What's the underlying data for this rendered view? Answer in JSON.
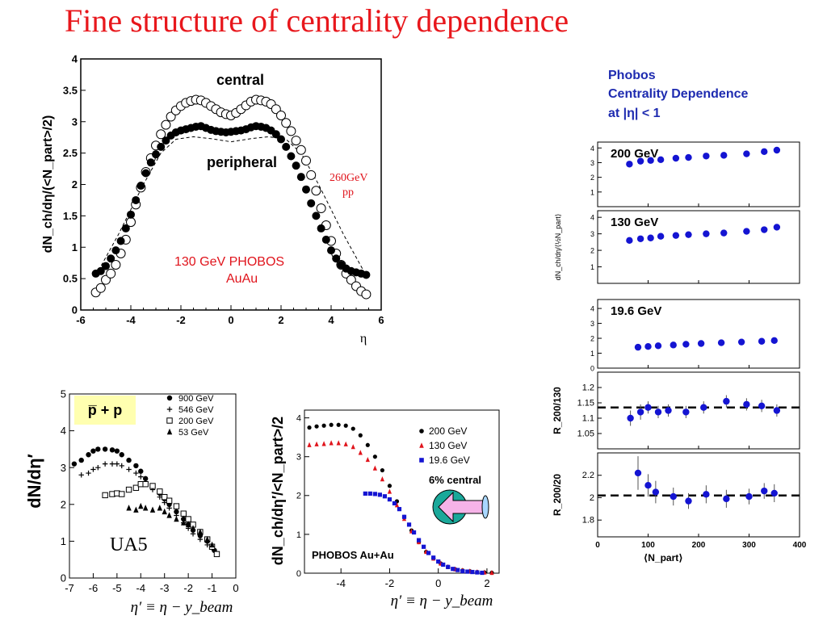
{
  "title": "Fine structure of centrality dependence",
  "colors": {
    "title": "#e8171c",
    "blue": "#1414d2",
    "red": "#e0141c",
    "navy": "#1e2bb0",
    "teal": "#1aa89a",
    "pink": "#f6b3e8",
    "yellow": "#ffffb0"
  },
  "chart_data": [
    {
      "type": "scatter",
      "ylabel": "dN_ch/dη/(<N_part>/2)",
      "xlabel": "η",
      "xlim": [
        -6,
        6
      ],
      "ylim": [
        0,
        4
      ],
      "xticks": [
        "-6",
        "-4",
        "-2",
        "0",
        "2",
        "4",
        "6"
      ],
      "yticks": [
        "0",
        "0.5",
        "1",
        "1.5",
        "2",
        "2.5",
        "3",
        "3.5",
        "4"
      ],
      "annotations": {
        "central": "central",
        "peripheral": "peripheral",
        "pp_line1": "260GeV",
        "pp_line2": "pp",
        "sys_line1": "130 GeV  PHOBOS",
        "sys_line2": "AuAu"
      },
      "series": [
        {
          "name": "central",
          "marker": "open-circle",
          "x": [
            -5.4,
            -5.2,
            -5.0,
            -4.8,
            -4.6,
            -4.4,
            -4.2,
            -4.0,
            -3.8,
            -3.6,
            -3.4,
            -3.2,
            -3.0,
            -2.8,
            -2.6,
            -2.4,
            -2.2,
            -2.0,
            -1.8,
            -1.6,
            -1.4,
            -1.2,
            -1.0,
            -0.8,
            -0.6,
            -0.4,
            -0.2,
            0.0,
            0.2,
            0.4,
            0.6,
            0.8,
            1.0,
            1.2,
            1.4,
            1.6,
            1.8,
            2.0,
            2.2,
            2.4,
            2.6,
            2.8,
            3.0,
            3.2,
            3.4,
            3.6,
            3.8,
            4.0,
            4.2,
            4.4,
            4.6,
            4.8,
            5.0,
            5.2,
            5.4
          ],
          "y": [
            0.28,
            0.35,
            0.48,
            0.58,
            0.72,
            0.9,
            1.12,
            1.4,
            1.68,
            1.95,
            2.2,
            2.42,
            2.62,
            2.8,
            2.95,
            3.08,
            3.18,
            3.25,
            3.3,
            3.33,
            3.35,
            3.34,
            3.3,
            3.25,
            3.2,
            3.15,
            3.12,
            3.1,
            3.14,
            3.2,
            3.26,
            3.32,
            3.35,
            3.34,
            3.32,
            3.28,
            3.2,
            3.1,
            2.98,
            2.85,
            2.7,
            2.55,
            2.38,
            2.15,
            1.9,
            1.62,
            1.35,
            1.1,
            0.9,
            0.72,
            0.58,
            0.48,
            0.38,
            0.3,
            0.25
          ]
        },
        {
          "name": "peripheral",
          "marker": "filled-circle",
          "x": [
            -5.4,
            -5.2,
            -5.0,
            -4.8,
            -4.6,
            -4.4,
            -4.2,
            -4.0,
            -3.8,
            -3.6,
            -3.4,
            -3.2,
            -3.0,
            -2.8,
            -2.6,
            -2.4,
            -2.2,
            -2.0,
            -1.8,
            -1.6,
            -1.4,
            -1.2,
            -1.0,
            -0.8,
            -0.6,
            -0.4,
            -0.2,
            0.0,
            0.2,
            0.4,
            0.6,
            0.8,
            1.0,
            1.2,
            1.4,
            1.6,
            1.8,
            2.0,
            2.2,
            2.4,
            2.6,
            2.8,
            3.0,
            3.2,
            3.4,
            3.6,
            3.8,
            4.0,
            4.2,
            4.4,
            4.6,
            4.8,
            5.0,
            5.2,
            5.4
          ],
          "y": [
            0.58,
            0.62,
            0.7,
            0.82,
            0.95,
            1.1,
            1.3,
            1.52,
            1.75,
            1.98,
            2.18,
            2.35,
            2.48,
            2.6,
            2.7,
            2.78,
            2.83,
            2.86,
            2.88,
            2.9,
            2.92,
            2.93,
            2.9,
            2.87,
            2.85,
            2.84,
            2.83,
            2.84,
            2.85,
            2.86,
            2.88,
            2.91,
            2.93,
            2.92,
            2.9,
            2.86,
            2.8,
            2.72,
            2.6,
            2.45,
            2.3,
            2.12,
            1.92,
            1.7,
            1.5,
            1.3,
            1.12,
            0.95,
            0.82,
            0.72,
            0.66,
            0.62,
            0.6,
            0.58,
            0.56
          ]
        },
        {
          "name": "260GeV pp",
          "marker": "dashed-line",
          "x": [
            -5.4,
            -4.5,
            -3.5,
            -2.8,
            -2.2,
            -1.5,
            -0.8,
            0.0,
            0.8,
            1.5,
            2.2,
            2.8,
            3.5,
            4.5,
            5.4
          ],
          "y": [
            0.55,
            1.2,
            2.0,
            2.5,
            2.72,
            2.76,
            2.73,
            2.68,
            2.73,
            2.76,
            2.72,
            2.5,
            2.0,
            1.2,
            0.55
          ]
        }
      ]
    },
    {
      "type": "scatter",
      "ylabel": "dN/dη′",
      "xlabel": "η′ ≡ η − y_beam",
      "xlim": [
        -7,
        0
      ],
      "ylim": [
        0,
        5
      ],
      "xticks": [
        "-7",
        "-6",
        "-5",
        "-4",
        "-3",
        "-2",
        "-1",
        "0"
      ],
      "yticks": [
        "0",
        "1",
        "2",
        "3",
        "4",
        "5"
      ],
      "annotations": {
        "label": "UA5",
        "box": "p̅ + p"
      },
      "series": [
        {
          "name": "900 GeV",
          "marker": "filled-circle",
          "x": [
            -6.8,
            -6.5,
            -6.2,
            -6.0,
            -5.8,
            -5.5,
            -5.2,
            -5.0,
            -4.8,
            -4.5,
            -4.2,
            -4.0,
            -3.8,
            -3.5,
            -3.2,
            -3.0,
            -2.8,
            -2.5,
            -2.2,
            -2.0,
            -1.8,
            -1.5,
            -1.2,
            -0.9
          ],
          "y": [
            3.1,
            3.2,
            3.35,
            3.45,
            3.5,
            3.5,
            3.48,
            3.45,
            3.35,
            3.2,
            3.05,
            2.9,
            2.7,
            2.5,
            2.3,
            2.15,
            2.0,
            1.8,
            1.6,
            1.45,
            1.3,
            1.15,
            1.0,
            0.75
          ]
        },
        {
          "name": "546 GeV",
          "marker": "plus",
          "x": [
            -6.5,
            -6.2,
            -6.0,
            -5.8,
            -5.5,
            -5.2,
            -5.0,
            -4.8,
            -4.5,
            -4.2,
            -4.0,
            -3.8,
            -3.5,
            -3.2,
            -3.0,
            -2.8,
            -2.5,
            -2.2,
            -2.0,
            -1.8,
            -1.5,
            -1.2,
            -1.0
          ],
          "y": [
            2.8,
            2.85,
            2.95,
            3.0,
            3.1,
            3.1,
            3.1,
            3.05,
            2.95,
            2.85,
            2.75,
            2.6,
            2.4,
            2.2,
            2.05,
            1.9,
            1.7,
            1.5,
            1.35,
            1.2,
            1.05,
            0.9,
            0.8
          ]
        },
        {
          "name": "200 GeV",
          "marker": "open-square",
          "x": [
            -5.5,
            -5.2,
            -5.0,
            -4.8,
            -4.5,
            -4.2,
            -4.0,
            -3.8,
            -3.5,
            -3.2,
            -3.0,
            -2.8,
            -2.5,
            -2.2,
            -2.0,
            -1.8,
            -1.5,
            -1.2,
            -1.0,
            -0.8
          ],
          "y": [
            2.25,
            2.28,
            2.3,
            2.28,
            2.4,
            2.45,
            2.55,
            2.55,
            2.5,
            2.35,
            2.2,
            2.1,
            1.95,
            1.75,
            1.6,
            1.45,
            1.25,
            1.05,
            0.85,
            0.65
          ]
        },
        {
          "name": "53 GeV",
          "marker": "filled-triangle",
          "x": [
            -4.5,
            -4.2,
            -4.0,
            -3.8,
            -3.5,
            -3.2,
            -3.0,
            -2.8,
            -2.5,
            -2.2,
            -2.0,
            -1.8,
            -1.5,
            -1.2,
            -1.0
          ],
          "y": [
            1.9,
            1.85,
            1.95,
            1.9,
            1.85,
            1.9,
            1.8,
            1.7,
            1.6,
            1.5,
            1.45,
            1.35,
            1.25,
            1.05,
            0.9
          ]
        }
      ]
    },
    {
      "type": "scatter",
      "ylabel": "dN_ch/dη′/<N_part>/2",
      "xlabel": "η′ ≡ η − y_beam",
      "xlim": [
        -5.5,
        2.5
      ],
      "ylim": [
        0,
        4.2
      ],
      "xticks": [
        "-4",
        "-2",
        "0",
        "2"
      ],
      "yticks": [
        "0",
        "1",
        "2",
        "3",
        "4"
      ],
      "annotations": {
        "label": "PHOBOS Au+Au",
        "arrow": "6% central"
      },
      "series": [
        {
          "name": "200 GeV",
          "marker": "filled-circle",
          "x": [
            -5.3,
            -5.0,
            -4.7,
            -4.4,
            -4.1,
            -3.8,
            -3.5,
            -3.2,
            -2.9,
            -2.6,
            -2.3,
            -2.0,
            -1.7,
            -1.4,
            -1.1,
            -0.8,
            -0.5,
            -0.2,
            0.1,
            0.4,
            0.7,
            1.0,
            1.3,
            1.6,
            1.9,
            2.2
          ],
          "y": [
            3.75,
            3.78,
            3.8,
            3.82,
            3.82,
            3.8,
            3.72,
            3.55,
            3.3,
            3.0,
            2.65,
            2.25,
            1.85,
            1.45,
            1.1,
            0.8,
            0.55,
            0.38,
            0.25,
            0.16,
            0.1,
            0.07,
            0.05,
            0.03,
            0.02,
            0.01
          ]
        },
        {
          "name": "130 GeV",
          "marker": "filled-triangle",
          "x": [
            -5.3,
            -5.0,
            -4.7,
            -4.4,
            -4.1,
            -3.8,
            -3.5,
            -3.2,
            -2.9,
            -2.6,
            -2.3,
            -2.0,
            -1.7,
            -1.4,
            -1.1,
            -0.8,
            -0.5,
            -0.2,
            0.1,
            0.4,
            0.7,
            1.0,
            1.3,
            1.6,
            1.9,
            2.2
          ],
          "y": [
            3.3,
            3.32,
            3.33,
            3.35,
            3.35,
            3.32,
            3.25,
            3.1,
            2.92,
            2.7,
            2.42,
            2.1,
            1.75,
            1.4,
            1.08,
            0.8,
            0.55,
            0.38,
            0.25,
            0.16,
            0.1,
            0.07,
            0.05,
            0.03,
            0.02,
            0.01
          ]
        },
        {
          "name": "19.6 GeV",
          "marker": "filled-square",
          "x": [
            -3.0,
            -2.8,
            -2.6,
            -2.4,
            -2.2,
            -2.0,
            -1.8,
            -1.6,
            -1.4,
            -1.2,
            -1.0,
            -0.8,
            -0.6,
            -0.4,
            -0.2,
            0.0,
            0.2,
            0.4,
            0.6,
            0.8,
            1.0,
            1.2,
            1.4,
            1.6,
            1.8
          ],
          "y": [
            2.05,
            2.05,
            2.04,
            2.02,
            1.98,
            1.9,
            1.8,
            1.65,
            1.45,
            1.25,
            1.05,
            0.85,
            0.68,
            0.52,
            0.4,
            0.3,
            0.22,
            0.16,
            0.11,
            0.08,
            0.05,
            0.04,
            0.03,
            0.02,
            0.01
          ]
        }
      ]
    },
    {
      "type": "scatter",
      "header": [
        "Phobos",
        "Centrality Dependence",
        "at |η| < 1"
      ],
      "ylabel_top": "dN_ch/dη/⟨½N_part⟩",
      "xlabel": "⟨N_part⟩",
      "xlim": [
        0,
        400
      ],
      "xticks": [
        "0",
        "100",
        "200",
        "300",
        "400"
      ],
      "panels": [
        {
          "label": "200 GeV",
          "ylim": [
            0,
            4.4
          ],
          "yticks": [
            "1",
            "2",
            "3",
            "4"
          ],
          "series": {
            "x": [
              63,
              85,
              105,
              125,
              155,
              180,
              215,
              250,
              295,
              330,
              355
            ],
            "y": [
              2.9,
              3.1,
              3.15,
              3.2,
              3.3,
              3.35,
              3.45,
              3.5,
              3.6,
              3.75,
              3.85
            ]
          }
        },
        {
          "label": "130 GeV",
          "ylim": [
            0,
            4.4
          ],
          "yticks": [
            "1",
            "2",
            "3",
            "4"
          ],
          "series": {
            "x": [
              63,
              85,
              105,
              125,
              155,
              180,
              215,
              250,
              295,
              330,
              355
            ],
            "y": [
              2.6,
              2.7,
              2.75,
              2.85,
              2.9,
              2.95,
              3.0,
              3.05,
              3.15,
              3.25,
              3.4
            ]
          }
        },
        {
          "label": "19.6 GeV",
          "ylim": [
            0,
            4.6
          ],
          "yticks": [
            "0",
            "1",
            "2",
            "3",
            "4"
          ],
          "series": {
            "x": [
              80,
              100,
              120,
              150,
              175,
              205,
              245,
              285,
              325,
              350
            ],
            "y": [
              1.4,
              1.45,
              1.5,
              1.55,
              1.6,
              1.65,
              1.7,
              1.75,
              1.8,
              1.85
            ]
          }
        },
        {
          "ylabel": "R_200/130",
          "ylim": [
            1.0,
            1.25
          ],
          "yticks": [
            "1.05",
            "1.1",
            "1.15",
            "1.2"
          ],
          "ref": 1.135,
          "series": {
            "x": [
              65,
              85,
              100,
              120,
              140,
              175,
              210,
              255,
              295,
              325,
              355
            ],
            "y": [
              1.1,
              1.12,
              1.135,
              1.12,
              1.125,
              1.12,
              1.135,
              1.155,
              1.145,
              1.14,
              1.125
            ],
            "err": [
              0.025,
              0.025,
              0.02,
              0.02,
              0.02,
              0.02,
              0.02,
              0.02,
              0.02,
              0.02,
              0.02
            ]
          }
        },
        {
          "ylabel": "R_200/20",
          "ylim": [
            1.65,
            2.4
          ],
          "yticks": [
            "1.8",
            "2",
            "2.2"
          ],
          "ref": 2.02,
          "series": {
            "x": [
              80,
              100,
              115,
              150,
              180,
              215,
              255,
              300,
              330,
              350
            ],
            "y": [
              2.22,
              2.11,
              2.05,
              2.01,
              1.97,
              2.03,
              1.99,
              2.01,
              2.06,
              2.04
            ],
            "err": [
              0.15,
              0.1,
              0.1,
              0.08,
              0.07,
              0.08,
              0.08,
              0.07,
              0.07,
              0.08
            ]
          }
        }
      ]
    }
  ]
}
